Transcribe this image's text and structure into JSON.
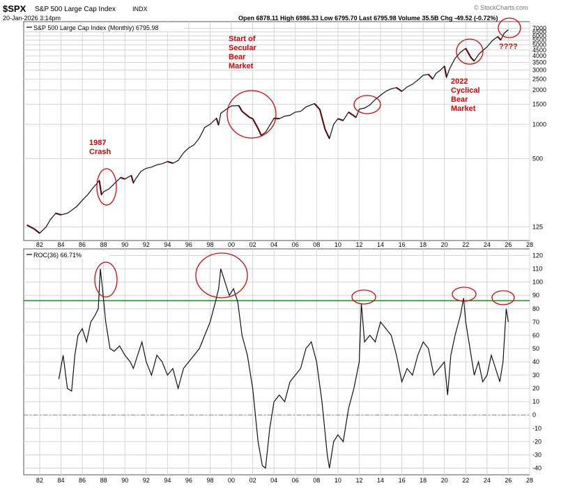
{
  "header": {
    "symbol": "$SPX",
    "name": "S&P 500 Large Cap Index",
    "exchange": "INDX",
    "watermark": "© StockCharts.com",
    "datetime": "20-Jan-2026 3:14pm",
    "quote": "Open 6878.11  High 6986.33  Low 6795.70  Last 6795.98  Volume 35.5B  Chg -49.52 (-0.72%)"
  },
  "colors": {
    "price_line": "#111111",
    "down_bar": "#cc1111",
    "annotation": "#e00000",
    "threshold": "#1a9a1a",
    "grid": "#d4d4d4",
    "zero_line": "#888888"
  },
  "chart_data": [
    {
      "type": "line",
      "legend": "S&P 500 Large Cap Index (Monthly) 6795.98",
      "y_scale": "log",
      "ylim": [
        95,
        8000
      ],
      "xlim": [
        1980.5,
        2028
      ],
      "x_ticks": [
        "82",
        "84",
        "86",
        "88",
        "90",
        "92",
        "94",
        "96",
        "98",
        "00",
        "02",
        "04",
        "06",
        "08",
        "10",
        "12",
        "14",
        "16",
        "18",
        "20",
        "22",
        "24",
        "26",
        "28"
      ],
      "y_ticks": [
        125,
        500,
        1000,
        1500,
        2000,
        2500,
        3000,
        3500,
        4000,
        4500,
        5000,
        5500,
        6000,
        6500,
        7000
      ],
      "series": [
        {
          "x": [
            1980.8,
            1981.5,
            1982.0,
            1982.6,
            1983.0,
            1983.5,
            1984.0,
            1984.6,
            1985.0,
            1985.5,
            1986.0,
            1986.5,
            1987.0,
            1987.6,
            1987.8,
            1988.0,
            1988.5,
            1989.0,
            1989.6,
            1990.0,
            1990.6,
            1990.8,
            1991.0,
            1991.5,
            1992.0,
            1992.5,
            1993.0,
            1993.5,
            1994.0,
            1994.5,
            1995.0,
            1995.5,
            1996.0,
            1996.5,
            1997.0,
            1997.5,
            1998.0,
            1998.6,
            1998.8,
            1999.0,
            1999.5,
            2000.0,
            2000.7,
            2001.0,
            2001.7,
            2002.0,
            2002.5,
            2002.8,
            2003.2,
            2003.6,
            2004.0,
            2004.5,
            2005.0,
            2005.5,
            2006.0,
            2006.5,
            2007.0,
            2007.8,
            2008.3,
            2008.8,
            2009.2,
            2009.6,
            2010.0,
            2010.5,
            2011.0,
            2011.7,
            2012.0,
            2012.5,
            2013.0,
            2013.5,
            2014.0,
            2014.5,
            2015.0,
            2015.5,
            2016.0,
            2016.5,
            2017.0,
            2017.5,
            2018.0,
            2018.5,
            2018.9,
            2019.2,
            2019.6,
            2020.0,
            2020.2,
            2020.5,
            2021.0,
            2021.5,
            2022.0,
            2022.5,
            2022.8,
            2023.2,
            2023.6,
            2024.0,
            2024.5,
            2025.0,
            2025.3,
            2025.6,
            2026.0
          ],
          "y": [
            130,
            120,
            110,
            125,
            145,
            165,
            160,
            165,
            175,
            190,
            215,
            240,
            275,
            320,
            240,
            255,
            270,
            300,
            340,
            330,
            355,
            305,
            330,
            385,
            410,
            420,
            440,
            450,
            470,
            455,
            480,
            560,
            620,
            660,
            760,
            940,
            1000,
            1130,
            980,
            1250,
            1350,
            1450,
            1460,
            1300,
            1150,
            1120,
            920,
            800,
            850,
            980,
            1130,
            1120,
            1180,
            1200,
            1280,
            1300,
            1420,
            1520,
            1350,
            900,
            750,
            1000,
            1120,
            1080,
            1280,
            1150,
            1360,
            1390,
            1480,
            1650,
            1800,
            1950,
            2050,
            2100,
            1950,
            2130,
            2250,
            2450,
            2700,
            2750,
            2500,
            2800,
            2980,
            3250,
            2600,
            3100,
            3800,
            4300,
            4650,
            3850,
            3600,
            4100,
            4450,
            4800,
            5450,
            5900,
            5500,
            6300,
            6800
          ]
        }
      ]
    },
    {
      "type": "line",
      "legend": "ROC(36) 66.71%",
      "ylim": [
        -45,
        125
      ],
      "xlim": [
        1980.5,
        2028
      ],
      "x_ticks": [
        "82",
        "84",
        "86",
        "88",
        "90",
        "92",
        "94",
        "96",
        "98",
        "00",
        "02",
        "04",
        "06",
        "08",
        "10",
        "12",
        "14",
        "16",
        "18",
        "20",
        "22",
        "24",
        "26",
        "28"
      ],
      "y_ticks": [
        120,
        110,
        100,
        90,
        80,
        70,
        60,
        50,
        40,
        30,
        20,
        10,
        0,
        -10,
        -20,
        -30,
        -40
      ],
      "threshold": 86,
      "series": [
        {
          "x": [
            1983.8,
            1984.2,
            1984.6,
            1985.0,
            1985.3,
            1985.6,
            1986.0,
            1986.4,
            1986.8,
            1987.2,
            1987.5,
            1987.7,
            1987.9,
            1988.2,
            1988.6,
            1989.0,
            1989.5,
            1990.0,
            1990.5,
            1990.8,
            1991.2,
            1991.6,
            1992.0,
            1992.5,
            1993.0,
            1993.5,
            1994.0,
            1994.5,
            1995.0,
            1995.5,
            1996.0,
            1996.5,
            1997.0,
            1997.5,
            1998.0,
            1998.5,
            1998.8,
            1999.0,
            1999.4,
            1999.8,
            2000.2,
            2000.6,
            2001.0,
            2001.5,
            2002.0,
            2002.5,
            2002.9,
            2003.2,
            2003.6,
            2004.0,
            2004.5,
            2005.0,
            2005.5,
            2006.0,
            2006.5,
            2007.0,
            2007.5,
            2008.0,
            2008.5,
            2009.0,
            2009.2,
            2009.6,
            2010.0,
            2010.5,
            2011.0,
            2011.5,
            2012.0,
            2012.2,
            2012.5,
            2013.0,
            2013.5,
            2014.0,
            2014.5,
            2015.0,
            2015.5,
            2016.0,
            2016.5,
            2017.0,
            2017.5,
            2018.0,
            2018.5,
            2019.0,
            2019.5,
            2020.0,
            2020.3,
            2020.6,
            2021.0,
            2021.5,
            2021.8,
            2022.0,
            2022.4,
            2022.8,
            2023.2,
            2023.6,
            2024.0,
            2024.4,
            2024.8,
            2025.2,
            2025.5,
            2025.8,
            2026.0
          ],
          "y": [
            27,
            45,
            20,
            18,
            45,
            60,
            65,
            55,
            70,
            75,
            80,
            110,
            95,
            70,
            50,
            48,
            52,
            45,
            40,
            35,
            45,
            55,
            40,
            30,
            45,
            40,
            30,
            35,
            20,
            35,
            40,
            45,
            50,
            60,
            70,
            85,
            95,
            110,
            100,
            90,
            95,
            85,
            60,
            45,
            20,
            -20,
            -38,
            -40,
            -10,
            10,
            15,
            10,
            25,
            30,
            35,
            50,
            55,
            40,
            10,
            -30,
            -40,
            -20,
            -15,
            -20,
            5,
            20,
            40,
            84,
            55,
            60,
            55,
            70,
            65,
            60,
            45,
            25,
            35,
            30,
            45,
            55,
            50,
            30,
            35,
            40,
            15,
            45,
            60,
            75,
            88,
            70,
            50,
            30,
            40,
            25,
            30,
            45,
            35,
            25,
            40,
            80,
            70
          ]
        }
      ]
    }
  ],
  "annotations": {
    "crash_1987": "1987\nCrash",
    "secular_bear": "Start of\nSecular\nBear\nMarket",
    "bear_2022": "2022\nCyclical\nBear\nMarket",
    "question": "????"
  }
}
